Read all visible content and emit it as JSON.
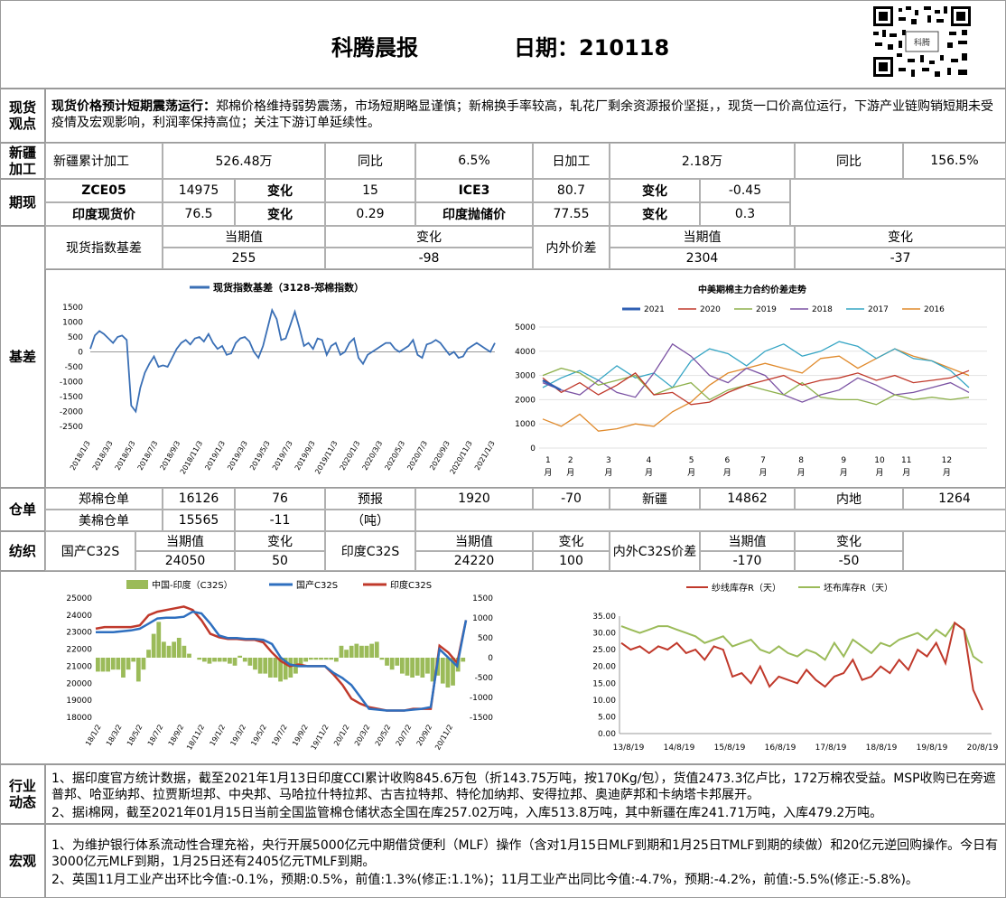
{
  "header": {
    "title": "科腾晨报",
    "date": "日期：210118",
    "qr_caption": "科腾"
  },
  "sections": {
    "spot_view": "现货\n观点",
    "xinjiang": "新疆\n加工",
    "futures_spot": "期现",
    "basis": "基差",
    "warehouse": "仓单",
    "spinning": "纺织",
    "industry": "行业\n动态",
    "macro": "宏观"
  },
  "spot_view": {
    "headline": "现货价格预计短期震荡运行：",
    "text": "郑棉价格维持弱势震荡，市场短期略显谨慎；新棉换手率较高，轧花厂剩余资源报价坚挺，，现货一口价高位运行，下游产业链购销短期未受疫情及宏观影响，利润率保持高位；关注下游订单延续性。"
  },
  "xinjiang": {
    "cum_label": "新疆累计加工",
    "cum_value": "526.48万",
    "yoy_label": "同比",
    "yoy_value": "6.5%",
    "daily_label": "日加工",
    "daily_value": "2.18万",
    "yoy2_label": "同比",
    "yoy2_value": "156.5%"
  },
  "futures": {
    "r1": {
      "a_label": "ZCE05",
      "a_value": "14975",
      "a_chg_label": "变化",
      "a_chg": "15",
      "b_label": "ICE3",
      "b_value": "80.7",
      "b_chg_label": "变化",
      "b_chg": "-0.45"
    },
    "r2": {
      "a_label": "印度现货价",
      "a_value": "76.5",
      "a_chg_label": "变化",
      "a_chg": "0.29",
      "b_label": "印度抛储价",
      "b_value": "77.55",
      "b_chg_label": "变化",
      "b_chg": "0.3"
    }
  },
  "basis": {
    "idx_label": "现货指数基差",
    "cur_label": "当期值",
    "chg_label": "变化",
    "idx_value": "255",
    "idx_chg": "-98",
    "spread_label": "内外价差",
    "cur2_label": "当期值",
    "chg2_label": "变化",
    "spread_value": "2304",
    "spread_chg": "-37"
  },
  "warehouse": {
    "zc_label": "郑棉仓单",
    "zc_value": "16126",
    "zc_chg": "76",
    "us_label": "美棉仓单",
    "us_value": "15565",
    "us_chg": "-11",
    "fc_label": "预报",
    "fc_unit": "（吨）",
    "fc_value": "1920",
    "fc_chg": "-70",
    "xj_label": "新疆",
    "xj_value": "14862",
    "nd_label": "内地",
    "nd_value": "1264"
  },
  "spinning": {
    "cn_label": "国产C32S",
    "cur_label": "当期值",
    "chg_label": "变化",
    "cn_value": "24050",
    "cn_chg": "50",
    "in_label": "印度C32S",
    "cur2_label": "当期值",
    "chg2_label": "变化",
    "in_value": "24220",
    "in_chg": "100",
    "diff_label": "内外C32S价差",
    "cur3_label": "当期值",
    "chg3_label": "变化",
    "diff_value": "-170",
    "diff_chg": "-50"
  },
  "industry": {
    "p1": "1、据印度官方统计数据，截至2021年1月13日印度CCI累计收购845.6万包（折143.75万吨，按170Kg/包），货值2473.3亿卢比，172万棉农受益。MSP收购已在旁遮普邦、哈亚纳邦、拉贾斯坦邦、中央邦、马哈拉什特拉邦、古吉拉特邦、特伦加纳邦、安得拉邦、奥迪萨邦和卡纳塔卡邦展开。",
    "p2": "2、据i棉网，截至2021年01月15日当前全国监管棉仓储状态全国在库257.02万吨，入库513.8万吨，其中新疆在库241.71万吨，入库479.2万吨。"
  },
  "macro": {
    "p1": "1、为维护银行体系流动性合理充裕，央行开展5000亿元中期借贷便利（MLF）操作（含对1月15日MLF到期和1月25日TMLF到期的续做）和20亿元逆回购操作。今日有3000亿元MLF到期，1月25日还有2405亿元TMLF到期。",
    "p2": "2、英国11月工业产出环比今值:-0.1%，预期:0.5%，前值:1.3%(修正:1.1%)；11月工业产出同比今值:-4.7%，预期:-4.2%，前值:-5.5%(修正:-5.8%)。"
  },
  "chart_data": [
    {
      "type": "line",
      "title": "",
      "legend": [
        "现货指数基差（3128-郑棉指数）"
      ],
      "yticks": [
        1500,
        1000,
        500,
        0,
        -500,
        -1000,
        -1500,
        -2000,
        -2500
      ],
      "ylim": [
        -2500,
        1500
      ],
      "xticks": [
        "2018/1/3",
        "2018/3/3",
        "2018/5/3",
        "2018/7/3",
        "2018/9/3",
        "2018/11/3",
        "2019/1/3",
        "2019/3/3",
        "2019/5/3",
        "2019/7/3",
        "2019/9/3",
        "2019/11/3",
        "2020/1/3",
        "2020/3/3",
        "2020/5/3",
        "2020/7/3",
        "2020/9/3",
        "2020/11/3",
        "2021/1/3"
      ],
      "colors": [
        "#3a6fb5"
      ],
      "series": [
        {
          "name": "现货指数基差（3128-郑棉指数）",
          "values": [
            100,
            550,
            700,
            600,
            450,
            300,
            500,
            550,
            400,
            -1800,
            -2000,
            -1200,
            -700,
            -400,
            -150,
            -500,
            -450,
            -500,
            -200,
            100,
            300,
            400,
            250,
            450,
            500,
            350,
            600,
            300,
            100,
            200,
            -100,
            -50,
            300,
            450,
            500,
            350,
            0,
            -200,
            200,
            800,
            1400,
            1100,
            400,
            450,
            900,
            1350,
            800,
            200,
            300,
            100,
            450,
            400,
            -100,
            200,
            300,
            -100,
            0,
            300,
            450,
            -200,
            -400,
            -100,
            0,
            100,
            200,
            300,
            300,
            100,
            0,
            100,
            200,
            400,
            -100,
            -200,
            250,
            300,
            400,
            300,
            100,
            -100,
            0,
            -200,
            -150,
            100,
            200,
            300,
            200,
            100,
            0,
            300
          ]
        }
      ]
    },
    {
      "type": "line",
      "title": "中美期棉主力合约价差走势",
      "legend": [
        "2021",
        "2020",
        "2019",
        "2018",
        "2017",
        "2016"
      ],
      "yticks": [
        5000,
        4000,
        3000,
        2000,
        1000,
        0
      ],
      "ylim": [
        0,
        5000
      ],
      "xticks": [
        "1月",
        "2月",
        "3月",
        "4月",
        "5月",
        "6月",
        "7月",
        "8月",
        "9月",
        "10月",
        "11月",
        "12月"
      ],
      "colors": [
        "#2f5fb3",
        "#c0392b",
        "#8db04b",
        "#7b52a3",
        "#35a5c4",
        "#e08a2c"
      ],
      "series": [
        {
          "name": "2021",
          "values": [
            2800,
            2600,
            2400
          ]
        },
        {
          "name": "2020",
          "values": [
            2900,
            2300,
            2700,
            2200,
            2600,
            3100,
            2200,
            2300,
            1800,
            1900,
            2300,
            2600,
            2800,
            3000,
            2600,
            2800,
            2900,
            3100,
            2800,
            3000,
            2700,
            2800,
            2900,
            3200
          ]
        },
        {
          "name": "2019",
          "values": [
            3000,
            3300,
            3100,
            2600,
            2800,
            3000,
            2200,
            2500,
            2700,
            2000,
            2400,
            2600,
            2400,
            2200,
            2700,
            2100,
            2000,
            2000,
            1800,
            2200,
            2000,
            2100,
            2000,
            2100
          ]
        },
        {
          "name": "2018",
          "values": [
            2700,
            2400,
            2200,
            2800,
            2300,
            2100,
            3100,
            4300,
            3800,
            3000,
            2700,
            3300,
            3000,
            2200,
            1900,
            2200,
            2400,
            2900,
            2600,
            2200,
            2300,
            2500,
            2700,
            2300
          ]
        },
        {
          "name": "2017",
          "values": [
            2500,
            2900,
            3200,
            2800,
            3400,
            2900,
            3100,
            2500,
            3600,
            4100,
            3900,
            3400,
            4000,
            4300,
            3800,
            4000,
            4400,
            4200,
            3700,
            4100,
            3700,
            3600,
            3200,
            2500
          ]
        },
        {
          "name": "2016",
          "values": [
            1200,
            900,
            1400,
            700,
            800,
            1000,
            900,
            1500,
            1900,
            2600,
            3100,
            3300,
            3500,
            3300,
            3100,
            3700,
            3800,
            3300,
            3700,
            4100,
            3800,
            3600,
            3300,
            3000
          ]
        }
      ]
    },
    {
      "type": "bar",
      "title": "",
      "legend": [
        "中国-印度（C32S）",
        "国产C32S",
        "印度C32S"
      ],
      "yticks_left": [
        25000,
        24000,
        23000,
        22000,
        21000,
        20000,
        19000,
        18000
      ],
      "ylim_left": [
        18000,
        25000
      ],
      "yticks_right": [
        1500,
        1000,
        500,
        0,
        -500,
        -1000,
        -1500
      ],
      "ylim_right": [
        -1500,
        1500
      ],
      "xticks": [
        "18/1/2",
        "18/3/2",
        "18/5/2",
        "18/7/2",
        "18/9/2",
        "18/11/2",
        "19/1/2",
        "19/3/2",
        "19/5/2",
        "19/7/2",
        "19/9/2",
        "19/11/2",
        "20/1/2",
        "20/3/2",
        "20/5/2",
        "20/7/2",
        "20/9/2",
        "20/11/2"
      ],
      "colors": [
        "#9bbb59",
        "#2e6fbf",
        "#c0392b"
      ],
      "series": [
        {
          "name": "中国-印度（C32S）",
          "values": [
            -350,
            -350,
            -350,
            -300,
            -300,
            -500,
            -300,
            -100,
            -600,
            -300,
            200,
            600,
            900,
            400,
            300,
            400,
            500,
            300,
            100,
            0,
            -50,
            -100,
            -150,
            -100,
            -100,
            -100,
            -150,
            -200,
            50,
            -100,
            -200,
            -300,
            -400,
            -400,
            -500,
            -500,
            -600,
            -550,
            -500,
            -400,
            -200,
            -100,
            -50,
            -50,
            -50,
            -50,
            -50,
            -100,
            300,
            200,
            300,
            350,
            300,
            300,
            350,
            400,
            -50,
            -200,
            -300,
            -200,
            -400,
            -450,
            -500,
            -450,
            -500,
            -400,
            -600,
            -450,
            -650,
            -750,
            -700,
            -350,
            -100
          ]
        },
        {
          "name": "国产C32S",
          "values": [
            23000,
            23000,
            23000,
            23050,
            23100,
            23200,
            23500,
            23800,
            23850,
            23850,
            23900,
            24200,
            24100,
            23500,
            22800,
            22650,
            22650,
            22600,
            22600,
            22550,
            22300,
            21500,
            21100,
            21000,
            21000,
            21000,
            21000,
            20600,
            20300,
            19900,
            19200,
            18500,
            18450,
            18400,
            18400,
            18400,
            18450,
            18500,
            18600,
            22000,
            21500,
            21000,
            23700
          ]
        },
        {
          "name": "印度C32S",
          "values": [
            23200,
            23300,
            23300,
            23300,
            23300,
            23400,
            24000,
            24200,
            24300,
            24400,
            24500,
            24300,
            23700,
            22900,
            22700,
            22600,
            22600,
            22550,
            22550,
            22400,
            21800,
            21300,
            21000,
            21100,
            21000,
            21000,
            21000,
            20500,
            19900,
            19100,
            18800,
            18600,
            18500,
            18400,
            18400,
            18400,
            18500,
            18500,
            18500,
            22200,
            21800,
            21200,
            23700
          ]
        }
      ]
    },
    {
      "type": "line",
      "title": "",
      "legend": [
        "纱线库存R（天）",
        "坯布库存R（天）"
      ],
      "yticks": [
        "35.00",
        "30.00",
        "25.00",
        "20.00",
        "15.00",
        "10.00",
        "5.00",
        "0.00"
      ],
      "ylim": [
        0,
        35
      ],
      "xticks": [
        "13/8/19",
        "14/8/19",
        "15/8/19",
        "16/8/19",
        "17/8/19",
        "18/8/19",
        "19/8/19",
        "20/8/19"
      ],
      "colors": [
        "#c0392b",
        "#9bbb59"
      ],
      "series": [
        {
          "name": "纱线库存R（天）",
          "values": [
            27,
            25,
            26,
            24,
            26,
            25,
            27,
            24,
            25,
            22,
            26,
            25,
            17,
            18,
            15,
            20,
            14,
            17,
            16,
            15,
            19,
            16,
            14,
            17,
            18,
            22,
            16,
            17,
            20,
            18,
            22,
            19,
            25,
            23,
            27,
            21,
            33,
            31,
            13,
            7
          ]
        },
        {
          "name": "坯布库存R（天）",
          "values": [
            32,
            31,
            30,
            31,
            32,
            32,
            31,
            30,
            29,
            27,
            28,
            29,
            26,
            27,
            28,
            25,
            24,
            26,
            24,
            23,
            25,
            24,
            22,
            27,
            23,
            28,
            26,
            24,
            27,
            26,
            28,
            29,
            30,
            28,
            31,
            29,
            33,
            31,
            23,
            21
          ]
        }
      ]
    }
  ]
}
